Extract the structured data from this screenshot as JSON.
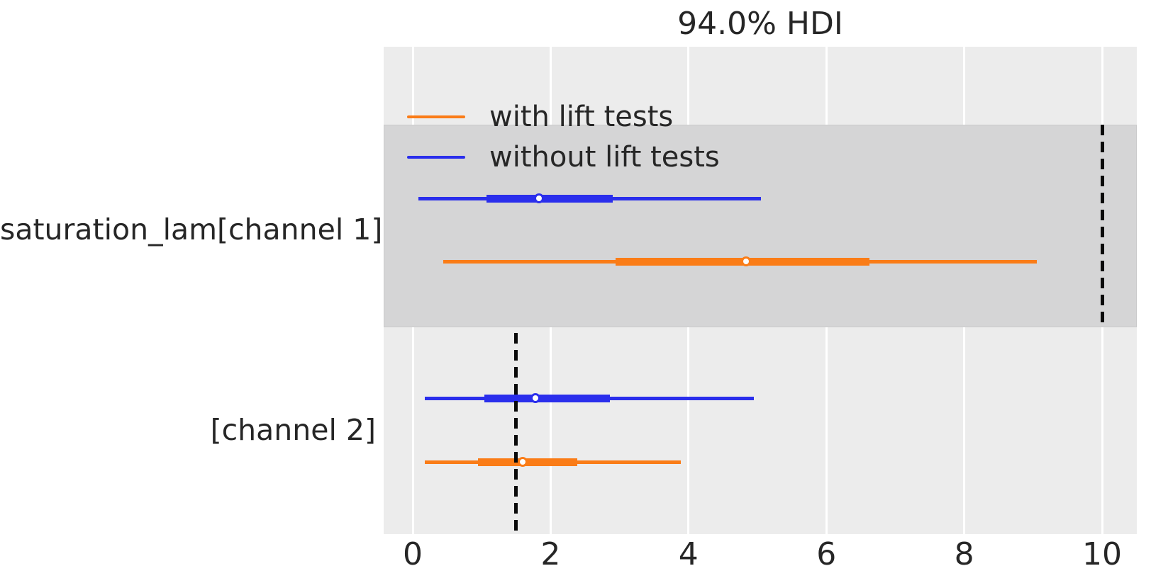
{
  "chart_data": {
    "type": "forest",
    "title": "94.0% HDI",
    "hdi_probability": "94.0%",
    "xlabel": "",
    "ylabel": "",
    "xlim": [
      -0.42,
      10.5
    ],
    "x_ticks": [
      0,
      2,
      4,
      6,
      8,
      10
    ],
    "grid": "vertical-white",
    "legend_position": "upper-left-inside",
    "legend": [
      {
        "label": "with lift tests",
        "color": "#fa7c17"
      },
      {
        "label": "without lift tests",
        "color": "#2a2eec"
      }
    ],
    "colors": {
      "plot_background": "#ececec",
      "row_shading": "#d5d5d6",
      "gridline": "#ffffff",
      "text": "#262626",
      "reference_line": "#0a0a0a",
      "marker_face": "#fdfdfd"
    },
    "variables": [
      {
        "label": "saturation_lam[channel 1]",
        "shaded": true,
        "reference_value": 10.0,
        "rows": [
          {
            "series": "without lift tests",
            "color": "#2a2eec",
            "hdi_94": [
              0.08,
              5.05
            ],
            "hdi_thick": [
              1.07,
              2.9
            ],
            "median": 1.83
          },
          {
            "series": "with lift tests",
            "color": "#fa7c17",
            "hdi_94": [
              0.44,
              9.05
            ],
            "hdi_thick": [
              2.94,
              6.63
            ],
            "median": 4.84
          }
        ]
      },
      {
        "label": "[channel 2]",
        "shaded": false,
        "reference_value": 1.5,
        "rows": [
          {
            "series": "without lift tests",
            "color": "#2a2eec",
            "hdi_94": [
              0.17,
              4.95
            ],
            "hdi_thick": [
              1.04,
              2.86
            ],
            "median": 1.78
          },
          {
            "series": "with lift tests",
            "color": "#fa7c17",
            "hdi_94": [
              0.17,
              3.89
            ],
            "hdi_thick": [
              0.95,
              2.39
            ],
            "median": 1.59
          }
        ]
      }
    ]
  }
}
